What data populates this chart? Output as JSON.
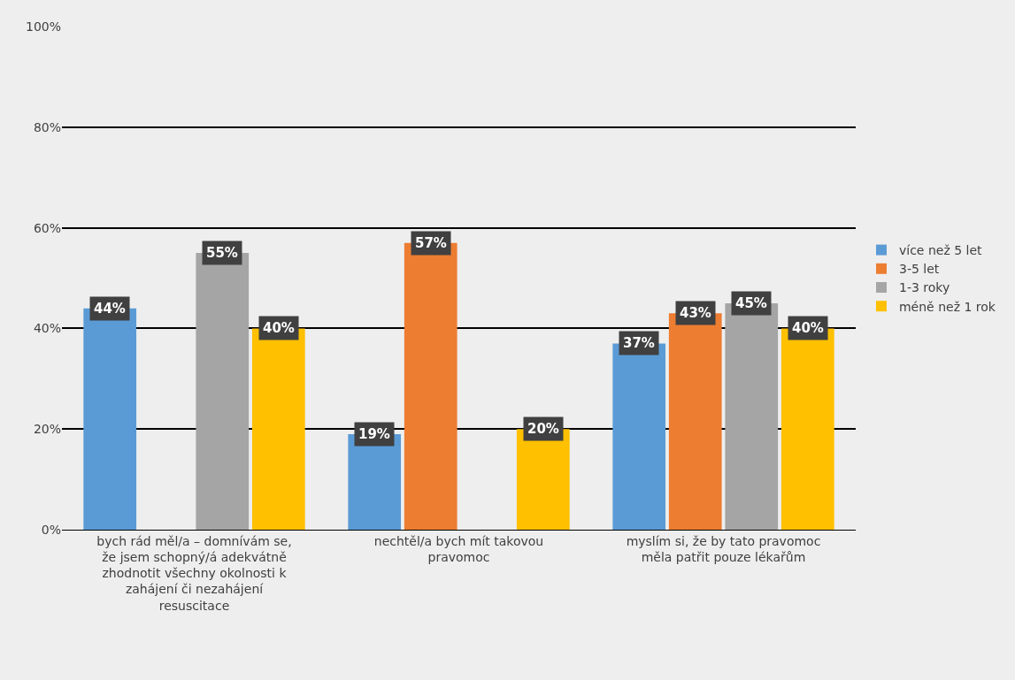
{
  "chart_data": {
    "type": "bar",
    "categories": [
      "bych rád měl/a – domnívám se, že jsem schopný/á adekvátně zhodnotit všechny okolnosti k zahájení či nezahájení resuscitace",
      "nechtěl/a bych mít takovou pravomoc",
      "myslím si, že by tato pravomoc měla patřit pouze lékařům"
    ],
    "series": [
      {
        "name": "více než 5 let",
        "color": "#5b9bd5",
        "values": [
          44,
          19,
          37
        ],
        "value_labels": [
          "44%",
          "19%",
          "37%"
        ]
      },
      {
        "name": "3-5 let",
        "color": "#ed7d31",
        "values": [
          null,
          57,
          43
        ],
        "value_labels": [
          null,
          "57%",
          "43%"
        ]
      },
      {
        "name": "1-3 roky",
        "color": "#a5a5a5",
        "values": [
          55,
          null,
          45
        ],
        "value_labels": [
          "55%",
          null,
          "45%"
        ]
      },
      {
        "name": "méně než 1 rok",
        "color": "#ffc000",
        "values": [
          40,
          20,
          40
        ],
        "value_labels": [
          "40%",
          "20%",
          "40%"
        ]
      }
    ],
    "ylim": [
      0,
      100
    ],
    "yticks": [
      {
        "value": 0,
        "label": "0%"
      },
      {
        "value": 20,
        "label": "20%"
      },
      {
        "value": 40,
        "label": "40%"
      },
      {
        "value": 60,
        "label": "60%"
      },
      {
        "value": 80,
        "label": "80%"
      },
      {
        "value": 100,
        "label": "100%"
      }
    ],
    "grid": "y",
    "legend": "right"
  }
}
